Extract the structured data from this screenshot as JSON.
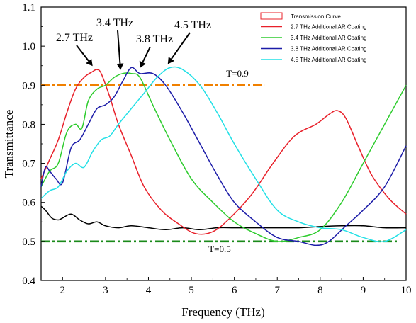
{
  "chart_data": {
    "type": "line",
    "xlabel": "Frequency (THz)",
    "ylabel": "Transmittance",
    "xlim": [
      1.5,
      10
    ],
    "ylim": [
      0.4,
      1.1
    ],
    "x_ticks": [
      2,
      3,
      4,
      5,
      6,
      7,
      8,
      9,
      10
    ],
    "y_ticks": [
      0.4,
      0.5,
      0.6,
      0.7,
      0.8,
      0.9,
      1.0,
      1.1
    ],
    "grid": false,
    "legend": {
      "placement": "top-right",
      "title": "Transmission Curve",
      "entries": [
        {
          "label": "2.7 THz  Additional AR Coating",
          "color": "#e8202a"
        },
        {
          "label": "3.4 THz  Additional AR Coating",
          "color": "#2ecc2e"
        },
        {
          "label": "3.8 THz  Additional AR Coating",
          "color": "#1c1ca8"
        },
        {
          "label": "4.5 THz  Additional AR Coating",
          "color": "#22e0e6"
        }
      ]
    },
    "reference_lines": [
      {
        "label": "T=0.9",
        "y": 0.9,
        "x_range": [
          1.5,
          6.7
        ],
        "color": "#f08000",
        "style": "dashdot"
      },
      {
        "label": "T=0.5",
        "y": 0.5,
        "x_range": [
          1.5,
          9.8
        ],
        "color": "#1a8a1a",
        "style": "dashdot"
      }
    ],
    "annotations": [
      {
        "text": "2.7 THz",
        "peak_x": 2.7,
        "peak_y": 0.94
      },
      {
        "text": "3.4 THz",
        "peak_x": 3.35,
        "peak_y": 0.93
      },
      {
        "text": "3.8 THz",
        "peak_x": 3.8,
        "peak_y": 0.935
      },
      {
        "text": "4.5 THz",
        "peak_x": 4.45,
        "peak_y": 0.945
      }
    ],
    "series": [
      {
        "name": "Transmission Curve",
        "color": "#000000",
        "points": [
          [
            1.5,
            0.59
          ],
          [
            1.6,
            0.58
          ],
          [
            1.75,
            0.56
          ],
          [
            1.9,
            0.555
          ],
          [
            2.0,
            0.56
          ],
          [
            2.2,
            0.57
          ],
          [
            2.4,
            0.555
          ],
          [
            2.6,
            0.545
          ],
          [
            2.8,
            0.55
          ],
          [
            3.0,
            0.54
          ],
          [
            3.3,
            0.535
          ],
          [
            3.6,
            0.54
          ],
          [
            4.0,
            0.535
          ],
          [
            4.4,
            0.53
          ],
          [
            4.8,
            0.535
          ],
          [
            5.2,
            0.53
          ],
          [
            5.6,
            0.535
          ],
          [
            6.0,
            0.535
          ],
          [
            6.5,
            0.535
          ],
          [
            7.0,
            0.535
          ],
          [
            7.5,
            0.535
          ],
          [
            8.0,
            0.538
          ],
          [
            8.5,
            0.54
          ],
          [
            9.0,
            0.54
          ],
          [
            9.5,
            0.535
          ],
          [
            10.0,
            0.535
          ]
        ]
      },
      {
        "name": "2.7 THz  Additional AR Coating",
        "color": "#e8202a",
        "points": [
          [
            1.5,
            0.66
          ],
          [
            1.7,
            0.71
          ],
          [
            1.9,
            0.76
          ],
          [
            2.1,
            0.83
          ],
          [
            2.3,
            0.89
          ],
          [
            2.5,
            0.92
          ],
          [
            2.7,
            0.935
          ],
          [
            2.8,
            0.94
          ],
          [
            2.9,
            0.93
          ],
          [
            3.1,
            0.87
          ],
          [
            3.3,
            0.8
          ],
          [
            3.6,
            0.72
          ],
          [
            3.9,
            0.64
          ],
          [
            4.3,
            0.58
          ],
          [
            4.7,
            0.545
          ],
          [
            5.1,
            0.52
          ],
          [
            5.5,
            0.525
          ],
          [
            5.9,
            0.56
          ],
          [
            6.4,
            0.62
          ],
          [
            6.9,
            0.7
          ],
          [
            7.4,
            0.77
          ],
          [
            7.9,
            0.8
          ],
          [
            8.2,
            0.825
          ],
          [
            8.4,
            0.835
          ],
          [
            8.6,
            0.815
          ],
          [
            8.9,
            0.74
          ],
          [
            9.2,
            0.67
          ],
          [
            9.6,
            0.61
          ],
          [
            10.0,
            0.57
          ]
        ]
      },
      {
        "name": "3.4 THz  Additional AR Coating",
        "color": "#2ecc2e",
        "points": [
          [
            1.5,
            0.64
          ],
          [
            1.7,
            0.68
          ],
          [
            1.9,
            0.7
          ],
          [
            2.1,
            0.78
          ],
          [
            2.3,
            0.8
          ],
          [
            2.45,
            0.79
          ],
          [
            2.6,
            0.86
          ],
          [
            2.8,
            0.89
          ],
          [
            3.0,
            0.9
          ],
          [
            3.2,
            0.92
          ],
          [
            3.4,
            0.93
          ],
          [
            3.6,
            0.93
          ],
          [
            3.8,
            0.92
          ],
          [
            4.1,
            0.85
          ],
          [
            4.5,
            0.76
          ],
          [
            5.0,
            0.66
          ],
          [
            5.5,
            0.6
          ],
          [
            6.0,
            0.55
          ],
          [
            6.5,
            0.52
          ],
          [
            7.0,
            0.5
          ],
          [
            7.5,
            0.51
          ],
          [
            8.0,
            0.53
          ],
          [
            8.5,
            0.6
          ],
          [
            9.0,
            0.7
          ],
          [
            9.5,
            0.8
          ],
          [
            10.0,
            0.9
          ]
        ]
      },
      {
        "name": "3.8 THz  Additional AR Coating",
        "color": "#1c1ca8",
        "points": [
          [
            1.5,
            0.64
          ],
          [
            1.6,
            0.69
          ],
          [
            1.7,
            0.68
          ],
          [
            1.85,
            0.66
          ],
          [
            2.0,
            0.65
          ],
          [
            2.2,
            0.74
          ],
          [
            2.4,
            0.76
          ],
          [
            2.6,
            0.8
          ],
          [
            2.8,
            0.84
          ],
          [
            3.0,
            0.85
          ],
          [
            3.2,
            0.87
          ],
          [
            3.4,
            0.91
          ],
          [
            3.6,
            0.945
          ],
          [
            3.8,
            0.93
          ],
          [
            4.1,
            0.93
          ],
          [
            4.4,
            0.9
          ],
          [
            4.8,
            0.83
          ],
          [
            5.2,
            0.75
          ],
          [
            5.6,
            0.67
          ],
          [
            6.0,
            0.6
          ],
          [
            6.5,
            0.55
          ],
          [
            7.0,
            0.51
          ],
          [
            7.5,
            0.5
          ],
          [
            7.9,
            0.49
          ],
          [
            8.2,
            0.5
          ],
          [
            8.6,
            0.54
          ],
          [
            9.0,
            0.58
          ],
          [
            9.5,
            0.64
          ],
          [
            10.0,
            0.745
          ]
        ]
      },
      {
        "name": "4.5 THz  Additional AR Coating",
        "color": "#22e0e6",
        "points": [
          [
            1.5,
            0.61
          ],
          [
            1.7,
            0.63
          ],
          [
            1.9,
            0.64
          ],
          [
            2.1,
            0.68
          ],
          [
            2.3,
            0.7
          ],
          [
            2.5,
            0.69
          ],
          [
            2.7,
            0.73
          ],
          [
            2.9,
            0.76
          ],
          [
            3.1,
            0.77
          ],
          [
            3.3,
            0.8
          ],
          [
            3.6,
            0.84
          ],
          [
            3.9,
            0.88
          ],
          [
            4.2,
            0.92
          ],
          [
            4.5,
            0.945
          ],
          [
            4.8,
            0.94
          ],
          [
            5.2,
            0.9
          ],
          [
            5.6,
            0.83
          ],
          [
            6.0,
            0.75
          ],
          [
            6.5,
            0.66
          ],
          [
            7.0,
            0.58
          ],
          [
            7.5,
            0.55
          ],
          [
            8.0,
            0.535
          ],
          [
            8.5,
            0.53
          ],
          [
            9.0,
            0.51
          ],
          [
            9.5,
            0.5
          ],
          [
            10.0,
            0.53
          ]
        ]
      }
    ]
  }
}
